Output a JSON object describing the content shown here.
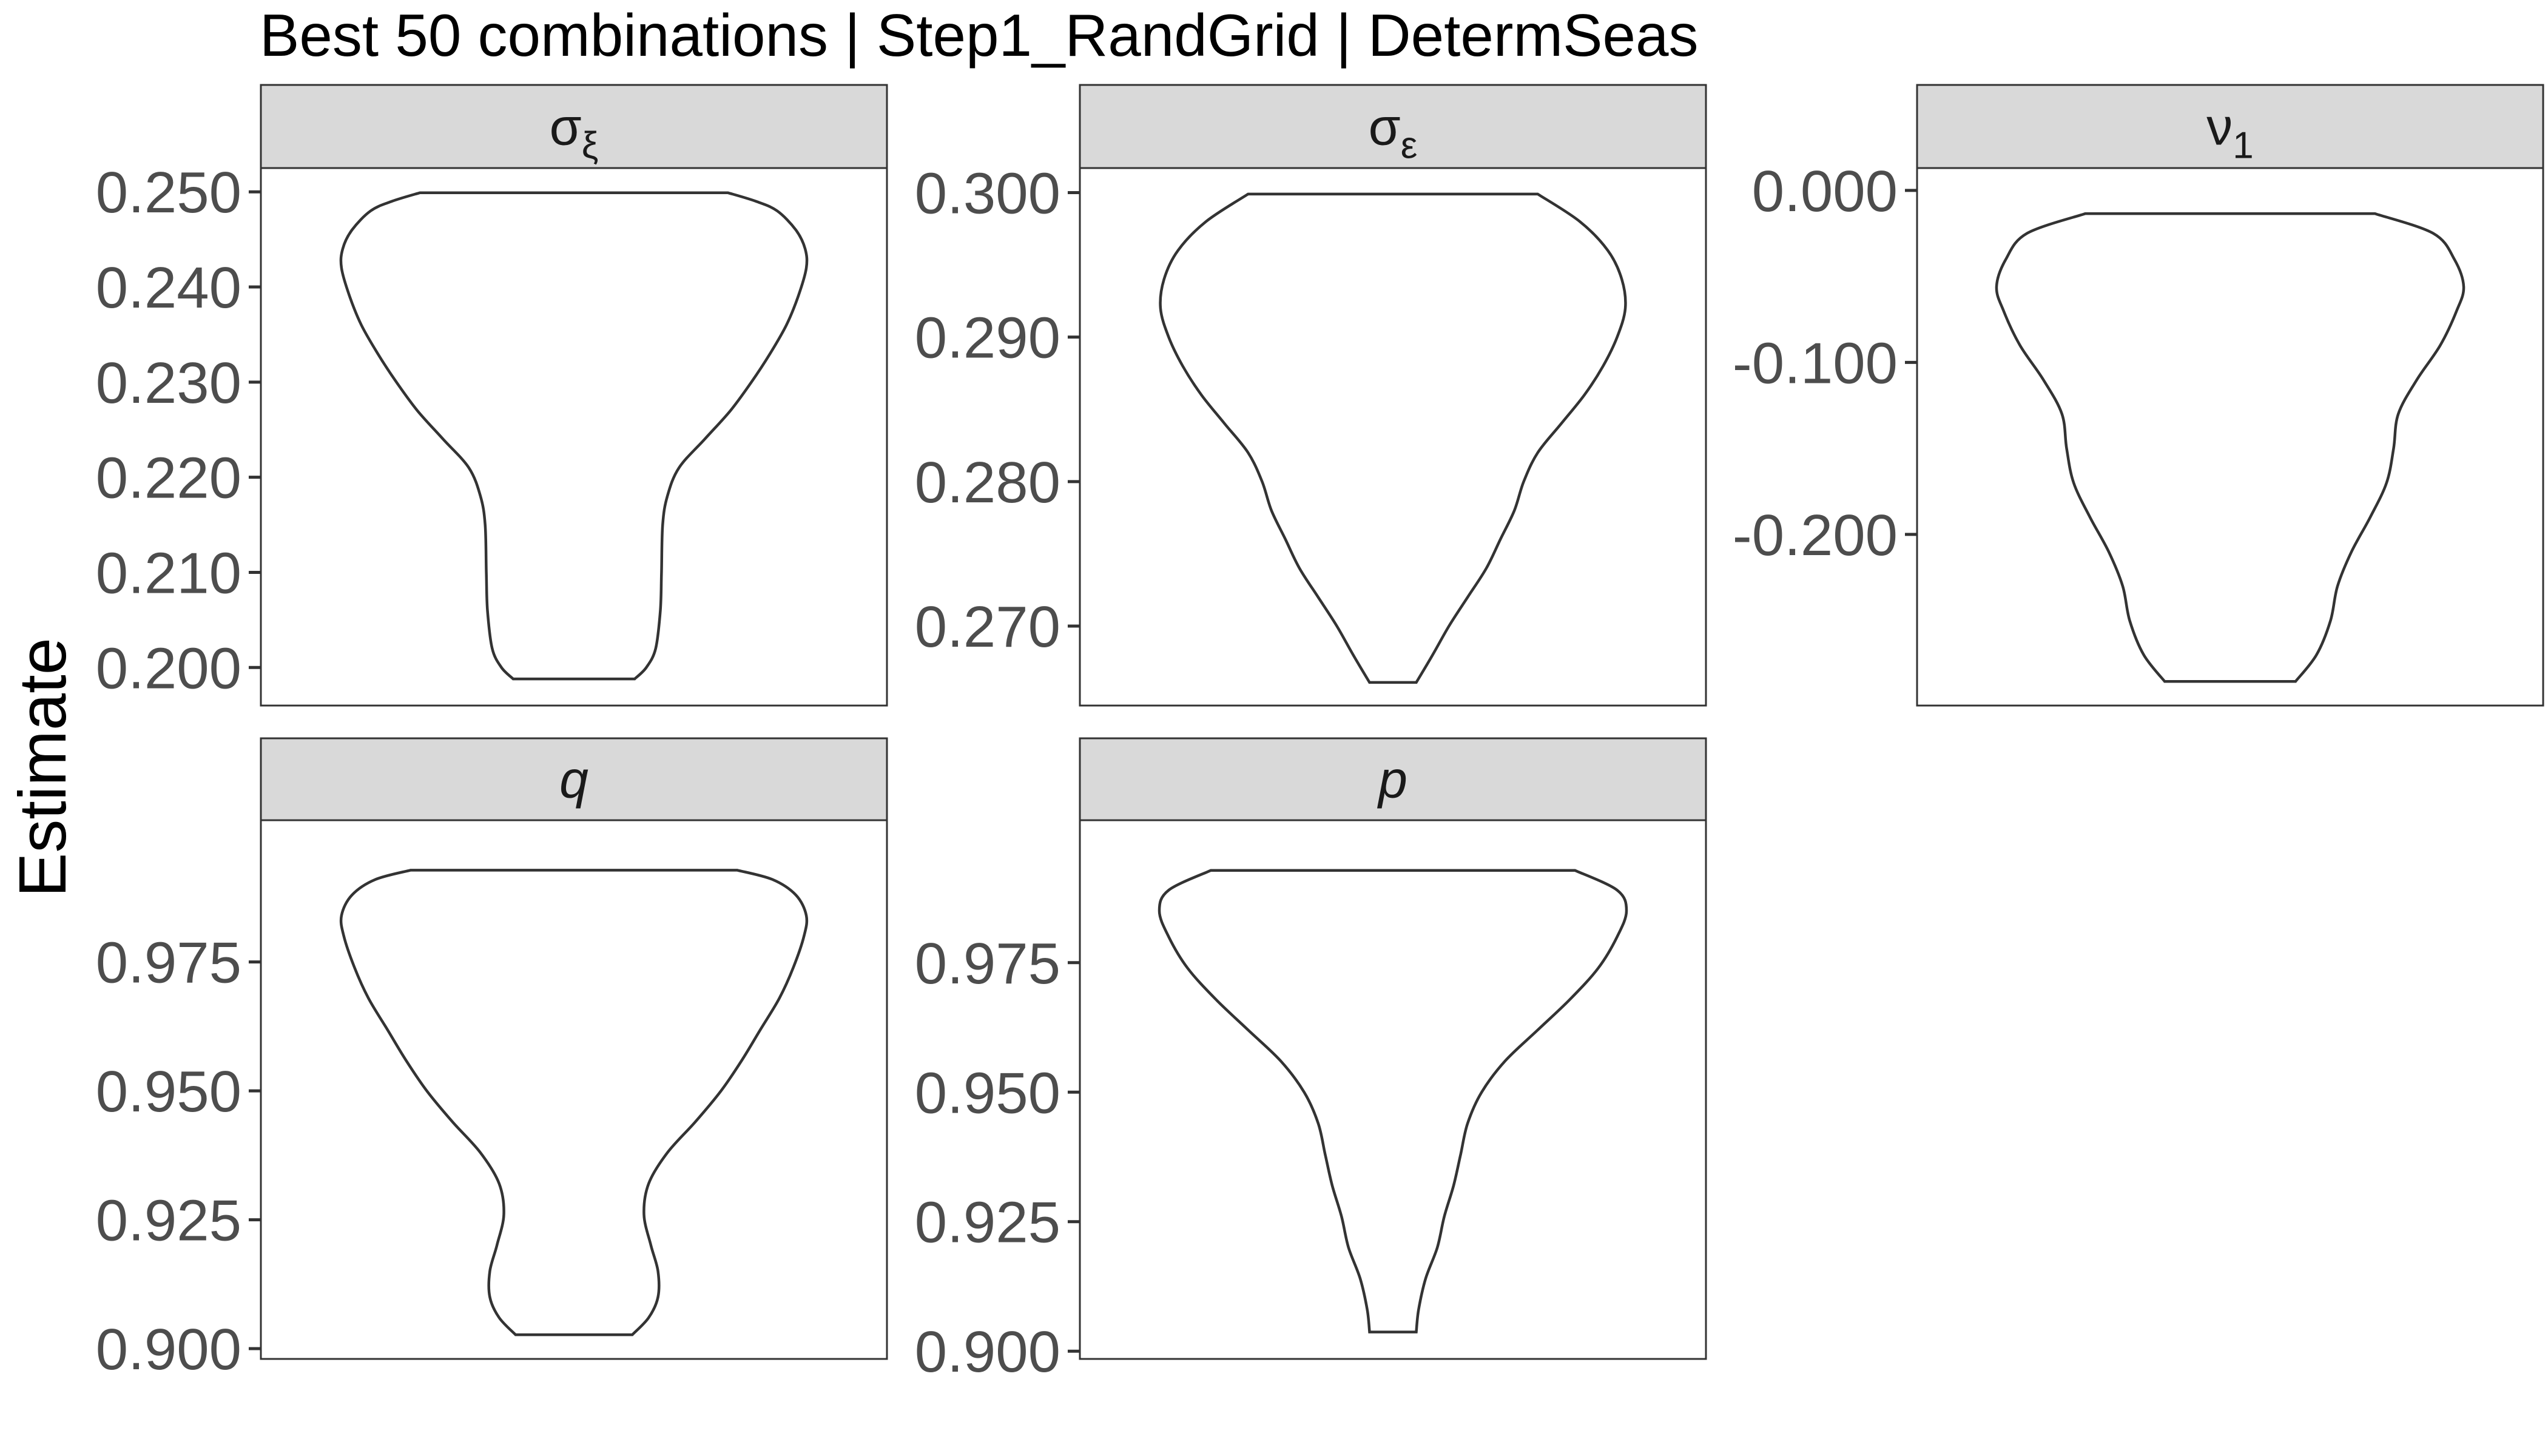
{
  "chart_data": {
    "type": "violin",
    "title": "Best 50 combinations | Step1_RandGrid | DetermSeas",
    "xlabel": "",
    "ylabel": "Estimate",
    "grid": false,
    "panels": [
      {
        "label": "σξ",
        "label_base": "σ",
        "label_sub": "ξ",
        "label_italic": false,
        "ylim": [
          0.196,
          0.2525
        ],
        "ticks": [
          0.2,
          0.21,
          0.22,
          0.23,
          0.24,
          0.25
        ],
        "tick_labels": [
          "0.200",
          "0.210",
          "0.220",
          "0.230",
          "0.240",
          "0.250"
        ],
        "min": 0.1988,
        "max": 0.2499,
        "density": [
          [
            0.1988,
            0.26
          ],
          [
            0.2,
            0.31
          ],
          [
            0.202,
            0.35
          ],
          [
            0.206,
            0.37
          ],
          [
            0.21,
            0.375
          ],
          [
            0.215,
            0.38
          ],
          [
            0.218,
            0.4
          ],
          [
            0.221,
            0.45
          ],
          [
            0.224,
            0.56
          ],
          [
            0.227,
            0.67
          ],
          [
            0.23,
            0.76
          ],
          [
            0.233,
            0.84
          ],
          [
            0.236,
            0.91
          ],
          [
            0.239,
            0.96
          ],
          [
            0.242,
            0.995
          ],
          [
            0.244,
            0.99
          ],
          [
            0.246,
            0.95
          ],
          [
            0.248,
            0.87
          ],
          [
            0.249,
            0.78
          ],
          [
            0.2499,
            0.66
          ]
        ]
      },
      {
        "label": "σε",
        "label_base": "σ",
        "label_sub": "ε",
        "label_italic": false,
        "ylim": [
          0.2645,
          0.3017
        ],
        "ticks": [
          0.27,
          0.28,
          0.29,
          0.3
        ],
        "tick_labels": [
          "0.270",
          "0.280",
          "0.290",
          "0.300"
        ],
        "min": 0.2661,
        "max": 0.2999,
        "density": [
          [
            0.2661,
            0.1
          ],
          [
            0.268,
            0.17
          ],
          [
            0.27,
            0.24
          ],
          [
            0.272,
            0.32
          ],
          [
            0.274,
            0.4
          ],
          [
            0.276,
            0.46
          ],
          [
            0.278,
            0.52
          ],
          [
            0.28,
            0.56
          ],
          [
            0.282,
            0.62
          ],
          [
            0.284,
            0.72
          ],
          [
            0.286,
            0.82
          ],
          [
            0.288,
            0.9
          ],
          [
            0.29,
            0.96
          ],
          [
            0.292,
            0.995
          ],
          [
            0.294,
            0.98
          ],
          [
            0.296,
            0.92
          ],
          [
            0.298,
            0.8
          ],
          [
            0.2999,
            0.62
          ]
        ]
      },
      {
        "label": "ν1",
        "label_base": "ν",
        "label_sub": "1",
        "label_italic": false,
        "ylim": [
          -0.2995,
          0.013
        ],
        "ticks": [
          -0.2,
          -0.1,
          0.0
        ],
        "tick_labels": [
          "-0.200",
          "-0.100",
          "0.000"
        ],
        "min": -0.2855,
        "max": -0.0135,
        "density": [
          [
            -0.2855,
            0.28
          ],
          [
            -0.27,
            0.37
          ],
          [
            -0.25,
            0.43
          ],
          [
            -0.23,
            0.46
          ],
          [
            -0.21,
            0.52
          ],
          [
            -0.19,
            0.6
          ],
          [
            -0.17,
            0.67
          ],
          [
            -0.15,
            0.7
          ],
          [
            -0.13,
            0.72
          ],
          [
            -0.11,
            0.8
          ],
          [
            -0.09,
            0.9
          ],
          [
            -0.07,
            0.97
          ],
          [
            -0.056,
            1.0
          ],
          [
            -0.04,
            0.96
          ],
          [
            -0.025,
            0.87
          ],
          [
            -0.0135,
            0.62
          ]
        ]
      },
      {
        "label": "q",
        "label_base": "q",
        "label_sub": "",
        "label_italic": true,
        "ylim": [
          0.898,
          1.0025
        ],
        "ticks": [
          0.9,
          0.925,
          0.95,
          0.975
        ],
        "tick_labels": [
          "0.900",
          "0.925",
          "0.950",
          "0.975"
        ],
        "min": 0.9027,
        "max": 0.9928,
        "density": [
          [
            0.9027,
            0.25
          ],
          [
            0.906,
            0.32
          ],
          [
            0.91,
            0.36
          ],
          [
            0.915,
            0.36
          ],
          [
            0.92,
            0.33
          ],
          [
            0.926,
            0.3
          ],
          [
            0.932,
            0.32
          ],
          [
            0.938,
            0.4
          ],
          [
            0.944,
            0.52
          ],
          [
            0.95,
            0.63
          ],
          [
            0.956,
            0.72
          ],
          [
            0.962,
            0.8
          ],
          [
            0.968,
            0.88
          ],
          [
            0.974,
            0.94
          ],
          [
            0.98,
            0.985
          ],
          [
            0.984,
            0.995
          ],
          [
            0.988,
            0.95
          ],
          [
            0.991,
            0.85
          ],
          [
            0.9928,
            0.7
          ]
        ]
      },
      {
        "label": "p",
        "label_base": "p",
        "label_sub": "",
        "label_italic": true,
        "ylim": [
          0.8985,
          1.0025
        ],
        "ticks": [
          0.9,
          0.925,
          0.95,
          0.975
        ],
        "tick_labels": [
          "0.900",
          "0.925",
          "0.950",
          "0.975"
        ],
        "min": 0.9037,
        "max": 0.9928,
        "density": [
          [
            0.9037,
            0.1
          ],
          [
            0.908,
            0.11
          ],
          [
            0.914,
            0.14
          ],
          [
            0.92,
            0.19
          ],
          [
            0.926,
            0.22
          ],
          [
            0.932,
            0.26
          ],
          [
            0.938,
            0.29
          ],
          [
            0.944,
            0.32
          ],
          [
            0.95,
            0.38
          ],
          [
            0.956,
            0.48
          ],
          [
            0.962,
            0.62
          ],
          [
            0.968,
            0.76
          ],
          [
            0.974,
            0.88
          ],
          [
            0.98,
            0.96
          ],
          [
            0.985,
            1.0
          ],
          [
            0.989,
            0.96
          ],
          [
            0.9928,
            0.78
          ]
        ]
      }
    ]
  }
}
